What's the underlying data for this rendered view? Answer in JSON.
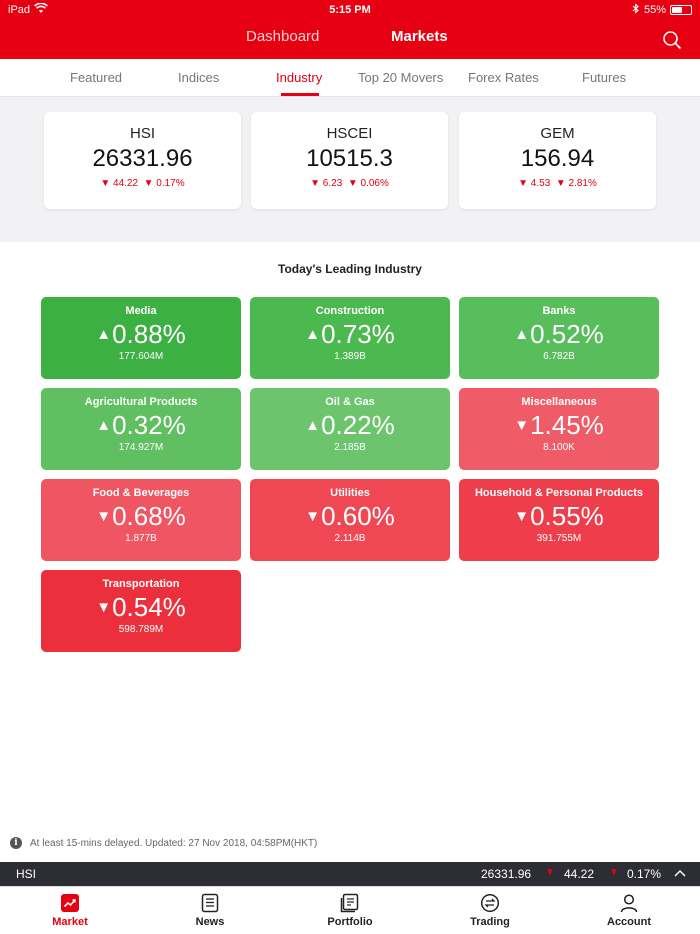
{
  "status_bar": {
    "carrier": "iPad",
    "time": "5:15 PM",
    "battery": "55%",
    "battery_level": 0.55
  },
  "header": {
    "dashboard_label": "Dashboard",
    "markets_label": "Markets"
  },
  "sub_tabs": [
    "Featured",
    "Indices",
    "Industry",
    "Top 20 Movers",
    "Forex Rates",
    "Futures"
  ],
  "active_sub_tab": "Industry",
  "indices": [
    {
      "name": "HSI",
      "value": "26331.96",
      "change": "▼ 44.22",
      "change_pct": "▼ 0.17%"
    },
    {
      "name": "HSCEI",
      "value": "10515.3",
      "change": "▼ 6.23",
      "change_pct": "▼ 0.06%"
    },
    {
      "name": "GEM",
      "value": "156.94",
      "change": "▼ 4.53",
      "change_pct": "▼ 2.81%"
    }
  ],
  "section_title": "Today's Leading Industry",
  "industries": [
    {
      "name": "Media",
      "arrow": "▲",
      "pct": "0.88%",
      "volume": "177.604M",
      "color": "#3cb043"
    },
    {
      "name": "Construction",
      "arrow": "▲",
      "pct": "0.73%",
      "volume": "1.389B",
      "color": "#4cb850"
    },
    {
      "name": "Banks",
      "arrow": "▲",
      "pct": "0.52%",
      "volume": "6.782B",
      "color": "#58bd5b"
    },
    {
      "name": "Agricultural Products",
      "arrow": "▲",
      "pct": "0.32%",
      "volume": "174.927M",
      "color": "#5fbf61"
    },
    {
      "name": "Oil & Gas",
      "arrow": "▲",
      "pct": "0.22%",
      "volume": "2.185B",
      "color": "#6cc56c"
    },
    {
      "name": "Miscellaneous",
      "arrow": "▼",
      "pct": "1.45%",
      "volume": "8.100K",
      "color": "#ef5b67"
    },
    {
      "name": "Food & Beverages",
      "arrow": "▼",
      "pct": "0.68%",
      "volume": "1.877B",
      "color": "#f05562"
    },
    {
      "name": "Utilities",
      "arrow": "▼",
      "pct": "0.60%",
      "volume": "2.114B",
      "color": "#ef4754"
    },
    {
      "name": "Household & Personal Products",
      "arrow": "▼",
      "pct": "0.55%",
      "volume": "391.755M",
      "color": "#ee3d4b"
    },
    {
      "name": "Transportation",
      "arrow": "▼",
      "pct": "0.54%",
      "volume": "598.789M",
      "color": "#ec2f3d"
    }
  ],
  "delay_note": "At least 15-mins delayed. Updated: 27 Nov 2018, 04:58PM(HKT)",
  "ticker": {
    "symbol": "HSI",
    "value": "26331.96",
    "down_arrow": "▼",
    "change": "44.22",
    "change_pct": "0.17%"
  },
  "bottom_tabs": {
    "market": "Market",
    "news": "News",
    "portfolio": "Portfolio",
    "trading": "Trading",
    "account": "Account"
  },
  "colors": {
    "brand_red": "#e60012",
    "ticker_bg": "#2d2d34"
  }
}
